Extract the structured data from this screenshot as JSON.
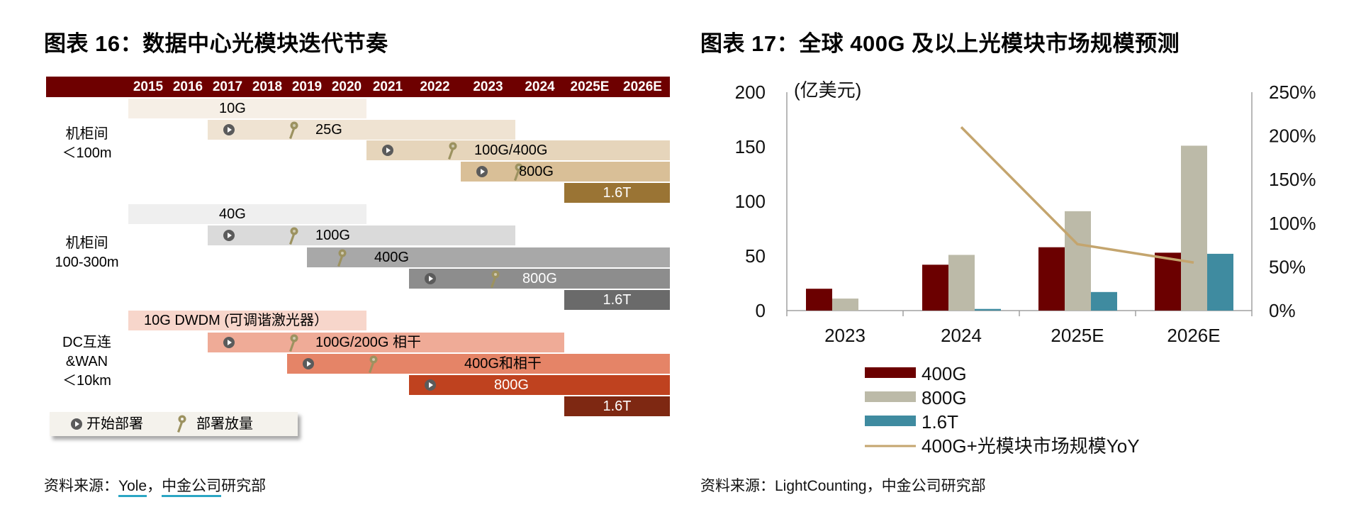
{
  "left": {
    "title": "图表 16：数据中心光模块迭代节奏",
    "source_prefix": "资料来源：",
    "source_parts": [
      "Yole",
      "，",
      "中金公司",
      "研究部"
    ],
    "years": [
      "2015",
      "2016",
      "2017",
      "2018",
      "2019",
      "2020",
      "2021",
      "2022",
      "2023",
      "2024",
      "2025E",
      "2026E"
    ],
    "groups": [
      {
        "label": [
          "机柜间",
          "＜100m"
        ],
        "bars": [
          {
            "label": "10G",
            "start": "2015",
            "end": "2020",
            "color": "#f6efe6",
            "text_color": "#000"
          },
          {
            "label": "25G",
            "start": "2017",
            "end": "2023",
            "color": "#efe3d2",
            "text_color": "#000",
            "deploy_start": true,
            "ramp": true
          },
          {
            "label": "100G/400G",
            "start": "2021",
            "end": "2026E",
            "color": "#e6d5bb",
            "text_color": "#000",
            "deploy_start": true,
            "ramp": true
          },
          {
            "label": "800G",
            "start": "2023",
            "end": "2026E",
            "color": "#d9bf97",
            "text_color": "#000",
            "deploy_start": true,
            "ramp": true
          },
          {
            "label": "1.6T",
            "start": "2025E",
            "end": "2026E",
            "color": "#9a7434",
            "text_color": "#fff"
          }
        ]
      },
      {
        "label": [
          "机柜间",
          "100-300m"
        ],
        "bars": [
          {
            "label": "40G",
            "start": "2015",
            "end": "2020",
            "color": "#efefef",
            "text_color": "#000"
          },
          {
            "label": "100G",
            "start": "2017",
            "end": "2023",
            "color": "#dadada",
            "text_color": "#000",
            "deploy_start": true,
            "ramp": true
          },
          {
            "label": "400G",
            "start": "2019.5",
            "end": "2026E",
            "color": "#a8a8a8",
            "text_color": "#000",
            "ramp": true
          },
          {
            "label": "800G",
            "start": "2022",
            "end": "2026E",
            "color": "#8d8d8d",
            "text_color": "#fff",
            "deploy_start": true,
            "ramp": true
          },
          {
            "label": "1.6T",
            "start": "2025E",
            "end": "2026E",
            "color": "#6a6a6a",
            "text_color": "#fff"
          }
        ]
      },
      {
        "label": [
          "DC互连",
          "&WAN",
          "＜10km"
        ],
        "bars": [
          {
            "label": "10G DWDM (可调谐激光器）",
            "start": "2015",
            "end": "2020",
            "color": "#f7d6cb",
            "text_color": "#000"
          },
          {
            "label": "100G/200G 相干",
            "start": "2017",
            "end": "2024",
            "color": "#efab97",
            "text_color": "#000",
            "deploy_start": true,
            "ramp": true
          },
          {
            "label": "400G和相干",
            "start": "2019",
            "end": "2026E",
            "color": "#e58467",
            "text_color": "#000",
            "deploy_start": true,
            "ramp": true
          },
          {
            "label": "800G",
            "start": "2022",
            "end": "2026E",
            "color": "#bf421f",
            "text_color": "#fff",
            "deploy_start": true
          },
          {
            "label": "1.6T",
            "start": "2025E",
            "end": "2026E",
            "color": "#7e2812",
            "text_color": "#fff"
          }
        ]
      }
    ],
    "legend": {
      "deploy_start": "开始部署",
      "ramp": "部署放量"
    },
    "header_color": "#6e0000"
  },
  "right": {
    "title": "图表 17：全球 400G 及以上光模块市场规模预测",
    "source": "资料来源：LightCounting，中金公司研究部"
  },
  "chart_data": {
    "type": "bar",
    "title": "全球 400G 及以上光模块市场规模预测",
    "unit_label": "(亿美元)",
    "categories": [
      "2023",
      "2024",
      "2025E",
      "2026E"
    ],
    "series": [
      {
        "name": "400G",
        "type": "bar",
        "axis": "left",
        "color": "#6b0000",
        "values": [
          20,
          42,
          58,
          53
        ]
      },
      {
        "name": "800G",
        "type": "bar",
        "axis": "left",
        "color": "#bcbaa8",
        "values": [
          11,
          51,
          91,
          151
        ]
      },
      {
        "name": "1.6T",
        "type": "bar",
        "axis": "left",
        "color": "#3f8ba0",
        "values": [
          0,
          1.5,
          17,
          52
        ]
      },
      {
        "name": "400G+光模块市场规模YoY",
        "type": "line",
        "axis": "right",
        "color": "#c4a56e",
        "values": [
          null,
          210,
          76,
          55
        ]
      }
    ],
    "y_left": {
      "min": 0,
      "max": 200,
      "ticks": [
        "0",
        "50",
        "100",
        "150",
        "200"
      ]
    },
    "y_right": {
      "min": 0,
      "max": 250,
      "ticks": [
        "0%",
        "50%",
        "100%",
        "150%",
        "200%",
        "250%"
      ]
    },
    "grid": false,
    "legend_position": "bottom"
  }
}
